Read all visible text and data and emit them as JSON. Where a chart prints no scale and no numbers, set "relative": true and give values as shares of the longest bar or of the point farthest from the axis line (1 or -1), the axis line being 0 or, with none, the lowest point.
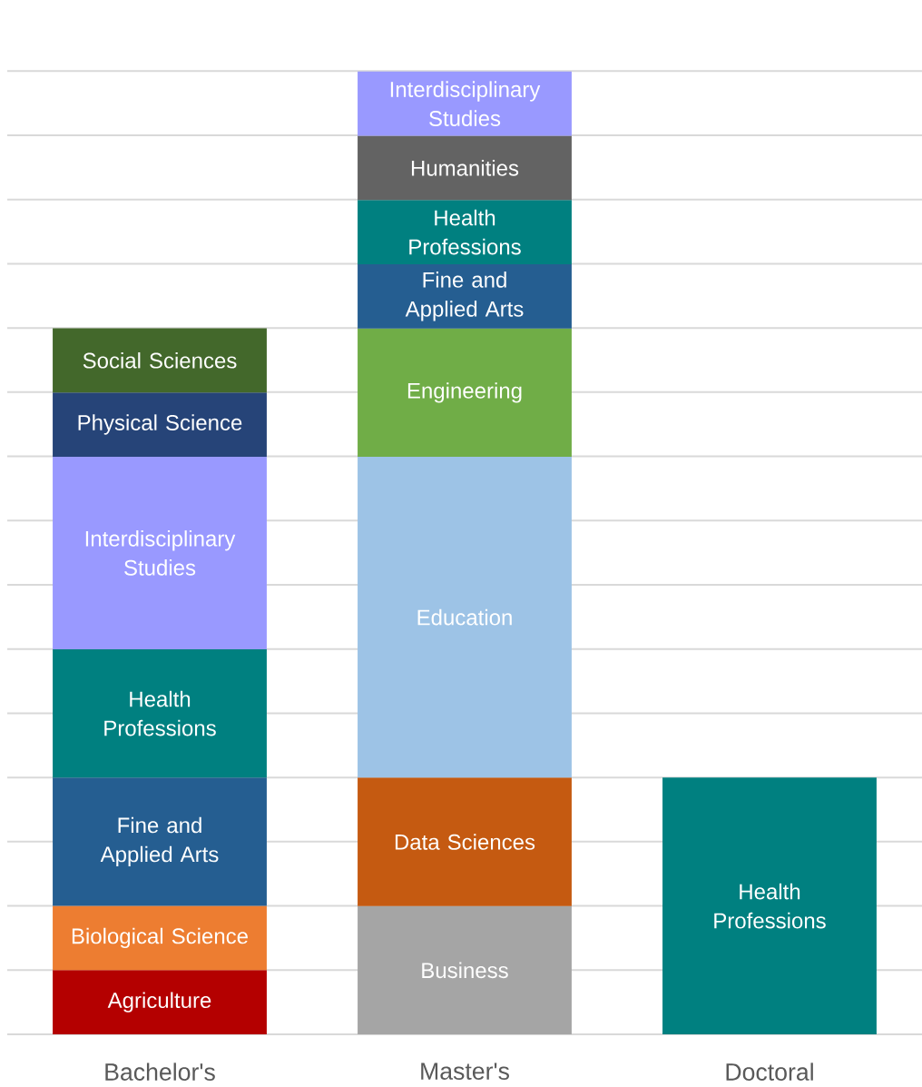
{
  "chart_data": {
    "type": "bar",
    "stacked": true,
    "relative": true,
    "grid": "y",
    "categories": [
      "Bachelor's",
      "Master's",
      "Doctoral"
    ],
    "series": [
      {
        "name": "Agriculture",
        "color": "#b40000",
        "values": [
          0.0667,
          null,
          null
        ]
      },
      {
        "name": "Biological Science",
        "color": "#ed7d31",
        "values": [
          0.0667,
          null,
          null
        ]
      },
      {
        "name": "Business",
        "color": "#a5a5a5",
        "values": [
          null,
          0.1333,
          null
        ]
      },
      {
        "name": "Data Sciences",
        "color": "#c55a11",
        "values": [
          null,
          0.1333,
          null
        ]
      },
      {
        "name": "Education",
        "color": "#9dc3e6",
        "values": [
          null,
          0.3333,
          null
        ]
      },
      {
        "name": "Engineering",
        "color": "#70ad47",
        "values": [
          null,
          0.1333,
          null
        ]
      },
      {
        "name": "Fine and Applied Arts",
        "color": "#255e91",
        "values": [
          0.1333,
          0.0667,
          null
        ]
      },
      {
        "name": "Health Professions",
        "color": "#008080",
        "values": [
          0.1333,
          0.0667,
          0.2667
        ]
      },
      {
        "name": "Humanities",
        "color": "#636363",
        "values": [
          null,
          0.0667,
          null
        ]
      },
      {
        "name": "Interdisciplinary Studies",
        "color": "#9999ff",
        "values": [
          0.2,
          0.0667,
          null
        ]
      },
      {
        "name": "Physical Science",
        "color": "#264478",
        "values": [
          0.0667,
          null,
          null
        ]
      },
      {
        "name": "Social Sciences",
        "color": "#43682b",
        "values": [
          0.0667,
          null,
          null
        ]
      }
    ]
  }
}
